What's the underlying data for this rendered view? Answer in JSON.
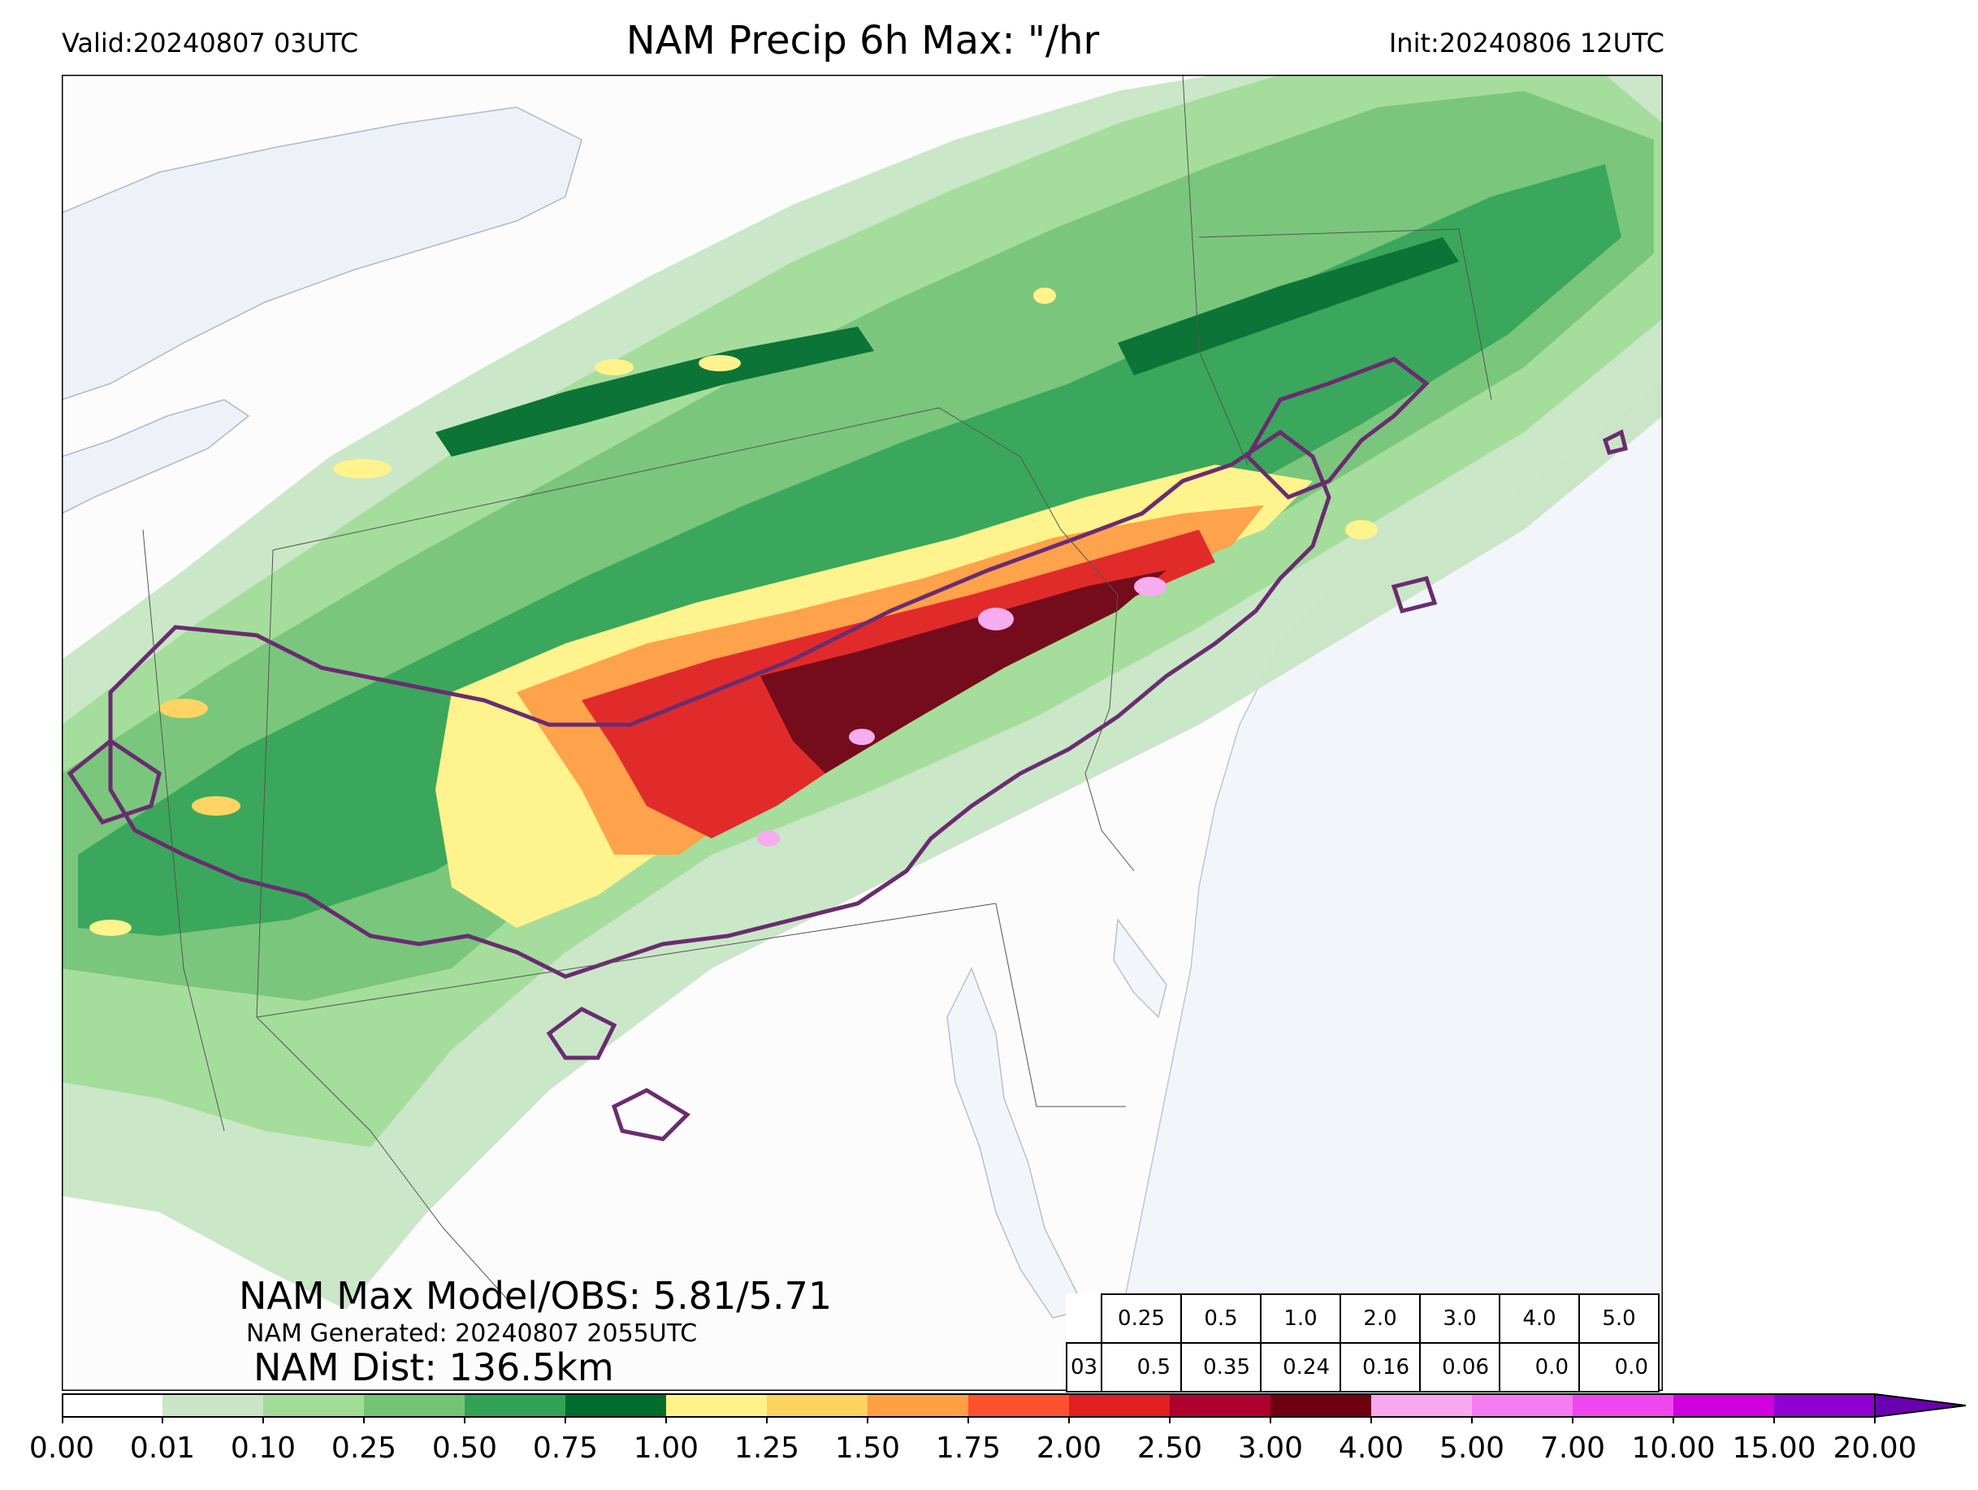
{
  "header": {
    "valid": "Valid:20240807 03UTC",
    "title": "NAM Precip 6h Max: \"/hr",
    "init": "Init:20240806 12UTC"
  },
  "annotations": {
    "max_model_obs": "NAM Max Model/OBS: 5.81/5.71",
    "generated": "NAM Generated: 20240807 2055UTC",
    "dist": "NAM Dist: 136.5km"
  },
  "stats_table": {
    "thresholds": [
      "0.25",
      "0.5",
      "1.0",
      "2.0",
      "3.0",
      "4.0",
      "5.0"
    ],
    "row_label": "03",
    "values": [
      "0.5",
      "0.35",
      "0.24",
      "0.16",
      "0.06",
      "0.0",
      "0.0"
    ]
  },
  "colorbar": {
    "ticks": [
      "0.00",
      "0.01",
      "0.10",
      "0.25",
      "0.50",
      "0.75",
      "1.00",
      "1.25",
      "1.50",
      "1.75",
      "2.00",
      "2.50",
      "3.00",
      "4.00",
      "5.00",
      "7.00",
      "10.00",
      "15.00",
      "20.00"
    ],
    "colors": [
      "#ffffff",
      "#c8e6c5",
      "#a1dc97",
      "#74c476",
      "#31a354",
      "#006d2c",
      "#fff387",
      "#ffd35c",
      "#ff9e42",
      "#ff5030",
      "#e02020",
      "#b0002e",
      "#6e0010",
      "#f8a8f0",
      "#f47cf0",
      "#f046f0",
      "#d000e0",
      "#9000d0"
    ],
    "extend_color": "#6a00b0"
  },
  "map_colors": {
    "ocean": "#f2f5fa",
    "land": "#fcfcfc",
    "obs_contour": "#6a2c70"
  }
}
